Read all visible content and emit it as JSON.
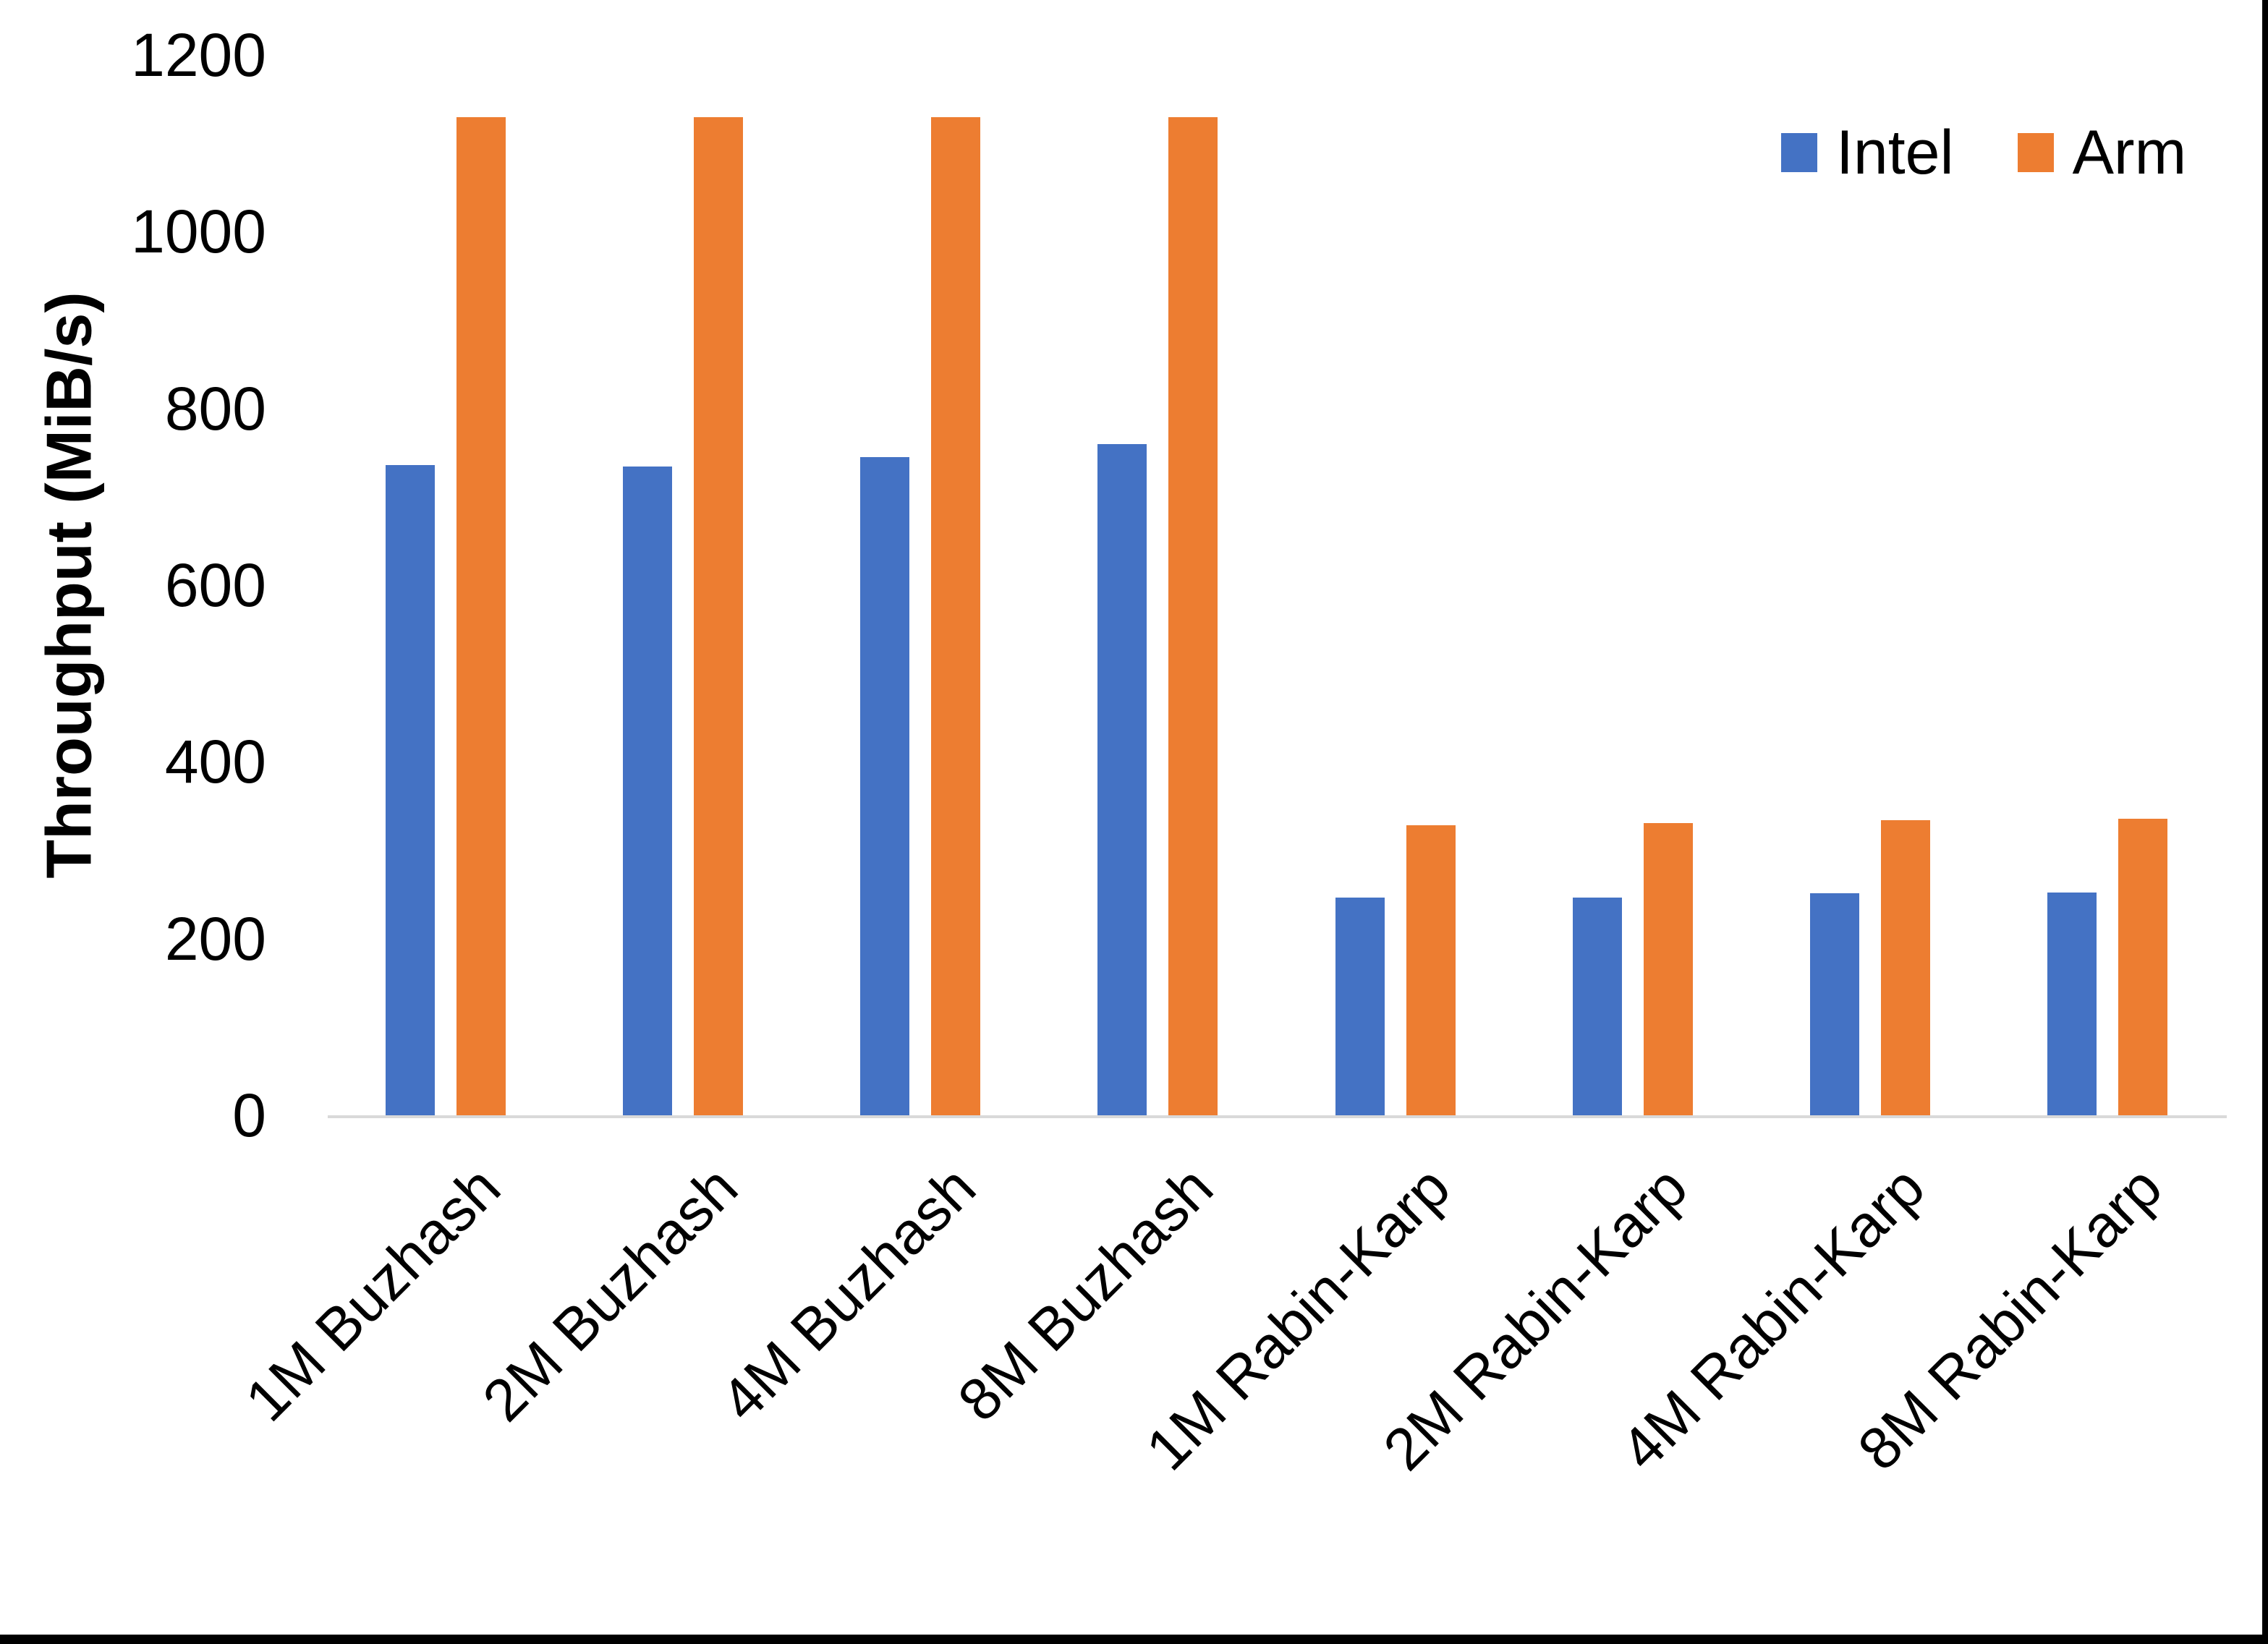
{
  "chart_data": {
    "type": "bar",
    "title": "",
    "categories": [
      "1M Buzhash",
      "2M Buzhash",
      "4M Buzhash",
      "8M Buzhash",
      "1M Rabin-Karp",
      "2M Rabin-Karp",
      "4M Rabin-Karp",
      "8M Rabin-Karp"
    ],
    "series": [
      {
        "name": "Intel",
        "color": "#4472C4",
        "values": [
          736,
          734,
          745,
          760,
          246,
          246,
          251,
          252
        ]
      },
      {
        "name": "Arm",
        "color": "#ED7D31",
        "values": [
          1130,
          1130,
          1130,
          1130,
          328,
          331,
          334,
          336
        ]
      }
    ],
    "xlabel": "",
    "ylabel": "Throughput (MiB/s)",
    "ylim": [
      0,
      1200
    ],
    "yticks": [
      0,
      200,
      400,
      600,
      800,
      1000,
      1200
    ],
    "grid": false,
    "legend_position": "top-right",
    "bar_orientation": "vertical",
    "axis_line_color": "#D9D9D9",
    "text_color": "#000000",
    "background_color": "#FFFFFF",
    "frame_border_color": "#000000"
  }
}
